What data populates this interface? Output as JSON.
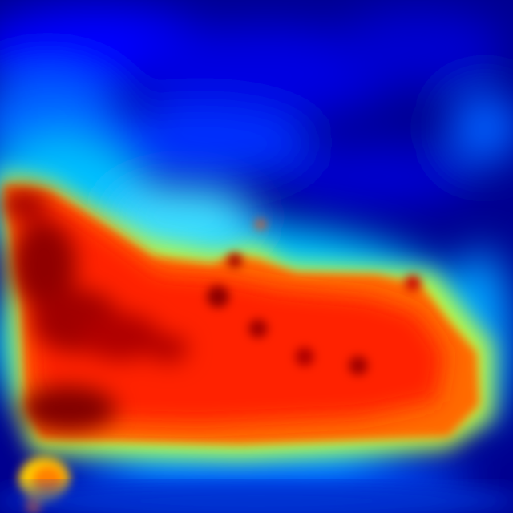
{
  "image": {
    "kind": "heat map visualization",
    "colormap": "jet",
    "colormap_stops": [
      "#00008f",
      "#0000ff",
      "#0080ff",
      "#00ffff",
      "#80ff80",
      "#ffff00",
      "#ff8000",
      "#ff0000",
      "#800000"
    ],
    "background_color": "#00008f",
    "pixelated": true,
    "labels_visible": false
  }
}
